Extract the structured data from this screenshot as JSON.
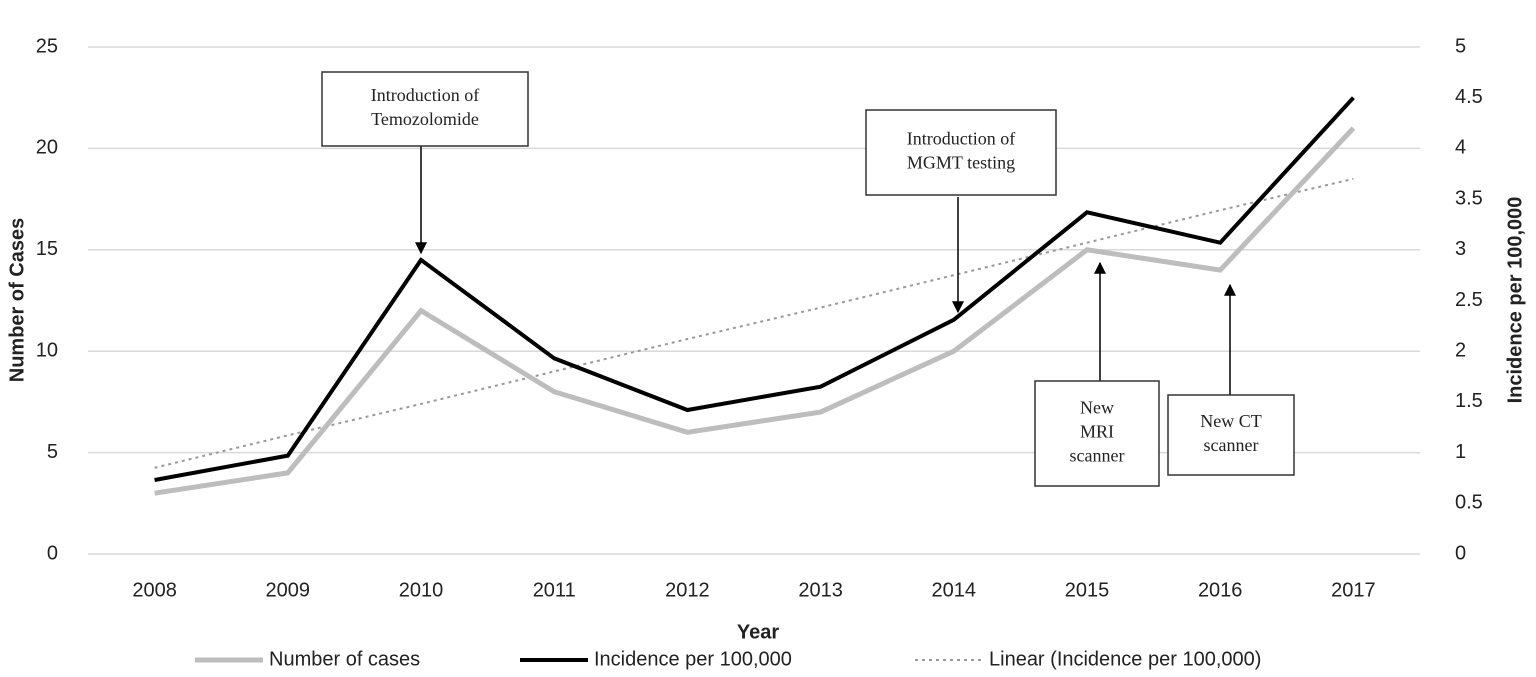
{
  "chart_data": {
    "type": "line",
    "x_label": "Year",
    "y_label": "Number of Cases",
    "y2_label": "Incidence per 100,000",
    "categories": [
      "2008",
      "2009",
      "2010",
      "2011",
      "2012",
      "2013",
      "2014",
      "2015",
      "2016",
      "2017"
    ],
    "series": [
      {
        "name": "Number of cases",
        "color": "#bdbdbd",
        "values": [
          3,
          4,
          12,
          8,
          6,
          7,
          10,
          15,
          14,
          21
        ]
      },
      {
        "name": "Incidence per 100,000",
        "color": "#000000",
        "axis": "y2",
        "values": [
          0.73,
          0.97,
          2.9,
          1.93,
          1.42,
          1.65,
          2.31,
          3.37,
          3.07,
          4.5
        ]
      },
      {
        "name": "Linear (Incidence per 100,000)",
        "color": "#999999",
        "axis": "y2",
        "style": "dotted",
        "values": [
          0.85,
          1.17,
          1.48,
          1.8,
          2.12,
          2.43,
          2.75,
          3.07,
          3.39,
          3.7
        ]
      }
    ],
    "ylim": [
      0,
      25
    ],
    "yticks": [
      0,
      5,
      10,
      15,
      20,
      25
    ],
    "y2lim": [
      0,
      5
    ],
    "y2ticks": [
      0,
      0.5,
      1,
      1.5,
      2,
      2.5,
      3,
      3.5,
      4,
      4.5,
      5
    ],
    "grid": true,
    "legend": "bottom",
    "annotations": [
      {
        "text": [
          "Introduction of",
          "Temozolomide"
        ]
      },
      {
        "text": [
          "Introduction of",
          "MGMT testing"
        ]
      },
      {
        "text": [
          "New",
          "MRI",
          "scanner"
        ]
      },
      {
        "text": [
          "New CT",
          "scanner"
        ]
      }
    ]
  }
}
